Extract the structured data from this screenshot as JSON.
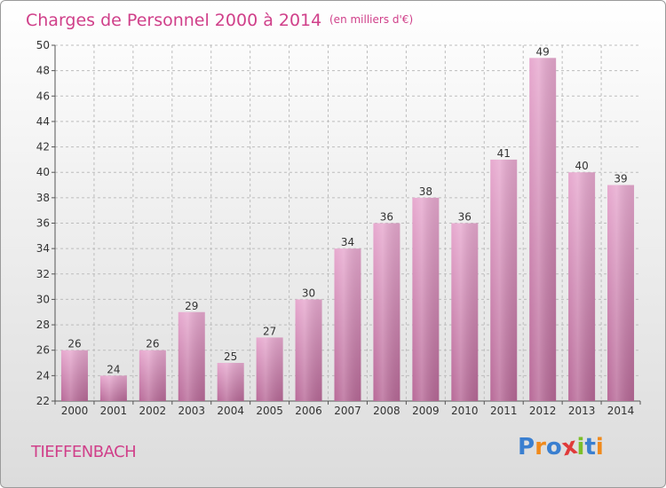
{
  "chart_data": {
    "type": "bar",
    "title": "Charges de Personnel 2000 à 2014",
    "subtitle": "(en milliers d'€)",
    "categories": [
      "2000",
      "2001",
      "2002",
      "2003",
      "2004",
      "2005",
      "2006",
      "2007",
      "2008",
      "2009",
      "2010",
      "2011",
      "2012",
      "2013",
      "2014"
    ],
    "values": [
      26,
      24,
      26,
      29,
      25,
      27,
      30,
      34,
      36,
      38,
      36,
      41,
      49,
      40,
      39
    ],
    "ylim": [
      22,
      50
    ],
    "yticks": [
      22,
      24,
      26,
      28,
      30,
      32,
      34,
      36,
      38,
      40,
      42,
      44,
      46,
      48,
      50
    ],
    "grid": true,
    "bar_color": "#d98cba",
    "xlabel": "",
    "ylabel": ""
  },
  "place_name": "TIEFFENBACH",
  "logo": {
    "letters": [
      "P",
      "r",
      "o",
      "x",
      "i",
      "t",
      "i"
    ],
    "colors": [
      "#3a7fd0",
      "#f08a1c",
      "#3a7fd0",
      "#e03a3a",
      "#7cbf2a",
      "#3a7fd0",
      "#f08a1c"
    ]
  }
}
